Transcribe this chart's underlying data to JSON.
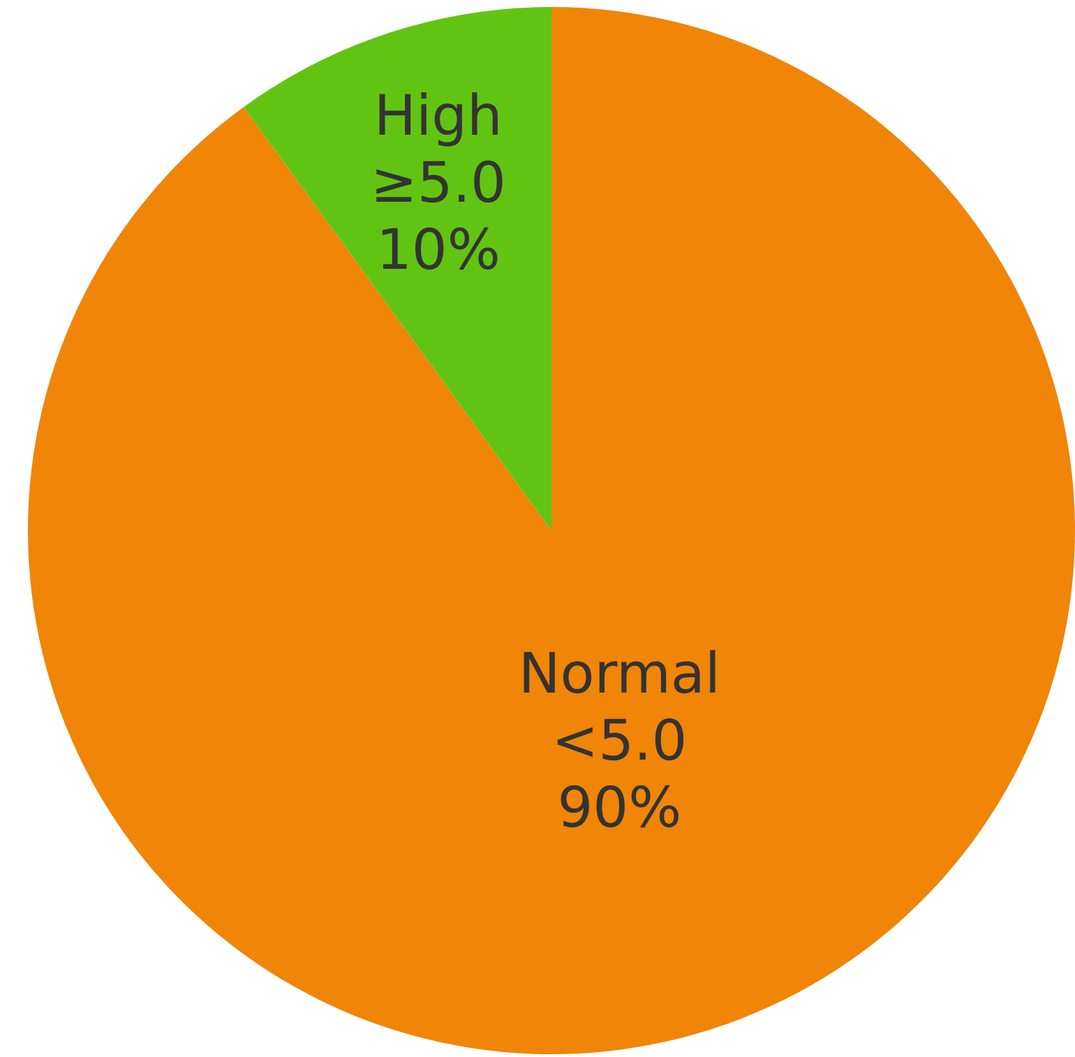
{
  "chart_data": {
    "type": "pie",
    "categories": [
      "Normal <5.0",
      "High ≥5.0"
    ],
    "values": [
      90,
      10
    ],
    "colors": [
      "#f08508",
      "#62c412"
    ],
    "value_labels": [
      "90%",
      "10%"
    ]
  }
}
